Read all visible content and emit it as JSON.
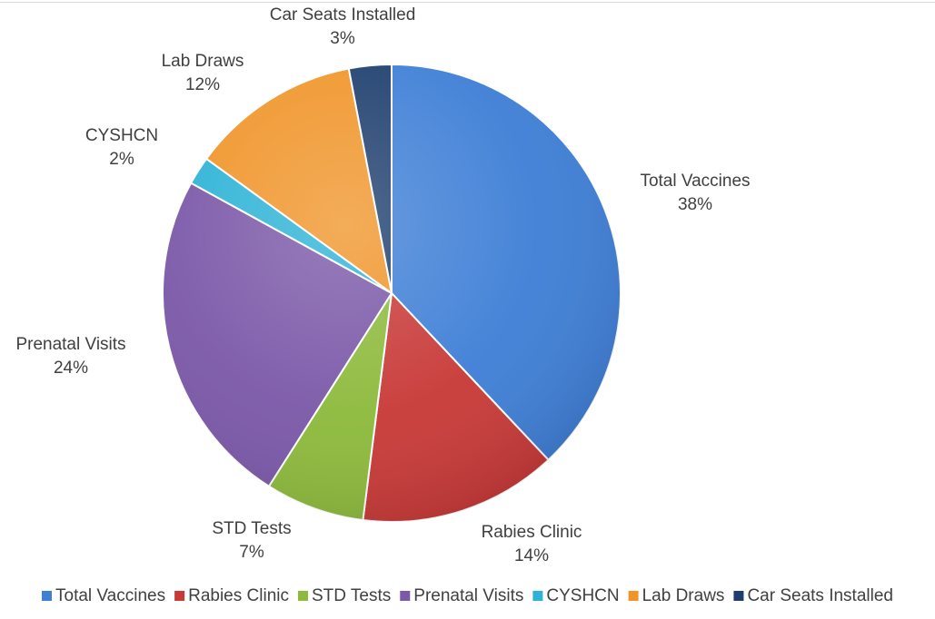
{
  "chart_data": {
    "type": "pie",
    "title": "",
    "legend_position": "bottom",
    "slices": [
      {
        "name": "Total Vaccines",
        "value": 38,
        "label": "38%",
        "color": "#3F7FD6"
      },
      {
        "name": "Rabies Clinic",
        "value": 14,
        "label": "14%",
        "color": "#C83A38"
      },
      {
        "name": "STD Tests",
        "value": 7,
        "label": "7%",
        "color": "#8DBA3C"
      },
      {
        "name": "Prenatal Visits",
        "value": 24,
        "label": "24%",
        "color": "#7B58A8"
      },
      {
        "name": "CYSHCN",
        "value": 2,
        "label": "2%",
        "color": "#2EB3D6"
      },
      {
        "name": "Lab Draws",
        "value": 12,
        "label": "12%",
        "color": "#F0952A"
      },
      {
        "name": "Car Seats Installed",
        "value": 3,
        "label": "3%",
        "color": "#1E3F6E"
      }
    ]
  }
}
